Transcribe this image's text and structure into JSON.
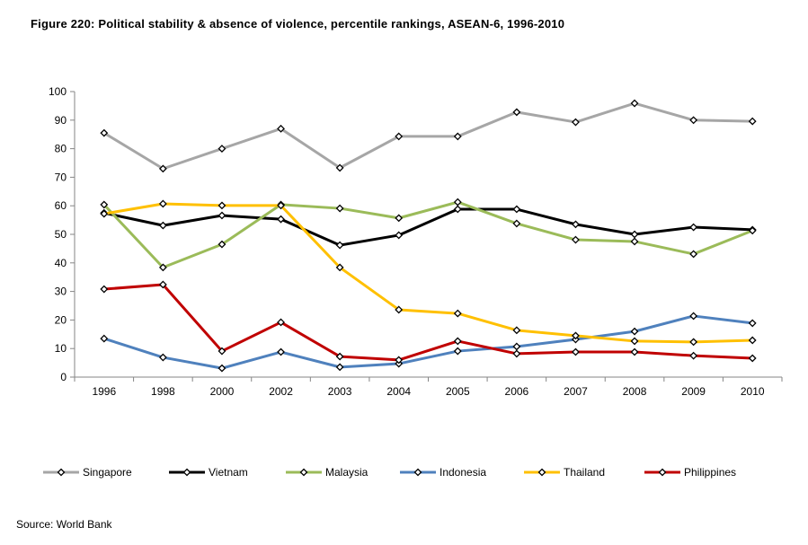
{
  "chart_data": {
    "type": "line",
    "title": "Figure 220: Political stability & absence of violence, percentile rankings, ASEAN-6, 1996-2010",
    "source": "Source: World Bank",
    "xlabel": "",
    "ylabel": "",
    "ylim": [
      0,
      100
    ],
    "yticks": [
      0,
      10,
      20,
      30,
      40,
      50,
      60,
      70,
      80,
      90,
      100
    ],
    "categories": [
      "1996",
      "1998",
      "2000",
      "2002",
      "2003",
      "2004",
      "2005",
      "2006",
      "2007",
      "2008",
      "2009",
      "2010"
    ],
    "legend_position": "bottom",
    "grid": false,
    "series": [
      {
        "name": "Singapore",
        "color": "#A6A6A6",
        "values": [
          85.5,
          73,
          80,
          87,
          73.3,
          84.3,
          84.3,
          92.8,
          89.3,
          95.9,
          90,
          89.6
        ]
      },
      {
        "name": "Vietnam",
        "color": "#000000",
        "values": [
          57.5,
          53.1,
          56.6,
          55.3,
          46.2,
          49.7,
          58.8,
          58.8,
          53.5,
          50,
          52.5,
          51.6
        ]
      },
      {
        "name": "Malaysia",
        "color": "#9BBB59",
        "values": [
          60.4,
          38.4,
          46.5,
          60.4,
          59.1,
          55.7,
          61.3,
          53.8,
          48.1,
          47.5,
          43.1,
          51.3
        ]
      },
      {
        "name": "Indonesia",
        "color": "#4F81BD",
        "values": [
          13.5,
          6.9,
          3.1,
          8.8,
          3.5,
          4.7,
          9.1,
          10.7,
          13.2,
          16,
          21.4,
          18.9
        ]
      },
      {
        "name": "Thailand",
        "color": "#FFC000",
        "values": [
          57.2,
          60.7,
          60.1,
          60.1,
          38.4,
          23.6,
          22.3,
          16.4,
          14.5,
          12.6,
          12.3,
          12.9
        ]
      },
      {
        "name": "Philippines",
        "color": "#C00000",
        "values": [
          30.8,
          32.4,
          9.1,
          19.2,
          7.2,
          6,
          12.6,
          8.2,
          8.8,
          8.8,
          7.5,
          6.6
        ]
      }
    ]
  }
}
